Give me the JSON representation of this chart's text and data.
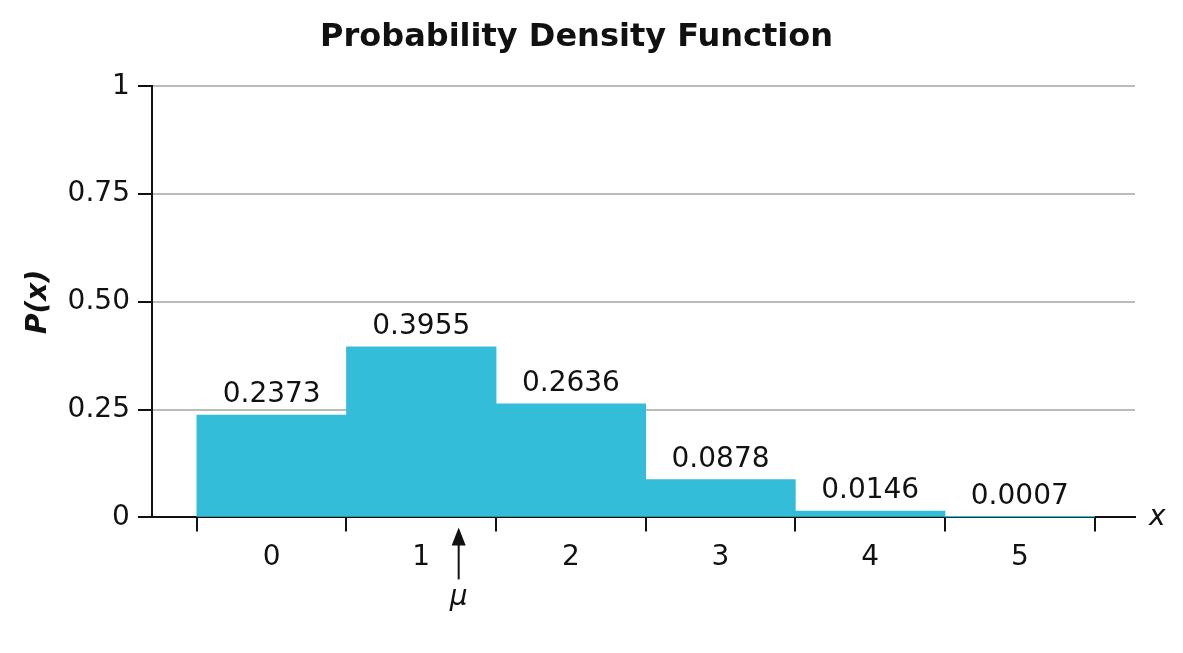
{
  "chart_data": {
    "type": "bar",
    "title": "Probability Density Function",
    "xlabel": "x",
    "ylabel": "P(x)",
    "x": [
      0,
      1,
      2,
      3,
      4,
      5
    ],
    "values": [
      0.2373,
      0.3955,
      0.2636,
      0.0878,
      0.0146,
      0.0007
    ],
    "color": "#33bdd9",
    "xlim": [
      -0.8,
      5.77
    ],
    "xticks": [
      0,
      1,
      2,
      3,
      4,
      5
    ],
    "ylim": [
      0,
      1
    ],
    "yticks": [
      0,
      0.25,
      {
        "value": 0.5,
        "label": "0.50"
      },
      0.75,
      1
    ],
    "grid": "y",
    "data_labels": true,
    "annotations": [
      {
        "text": "μ",
        "x": 1.25,
        "y": 0
      }
    ]
  }
}
